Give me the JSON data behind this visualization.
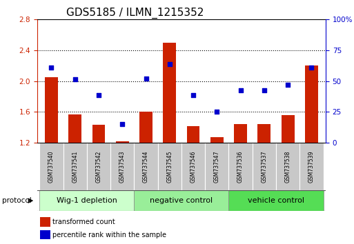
{
  "title": "GDS5185 / ILMN_1215352",
  "samples": [
    "GSM737540",
    "GSM737541",
    "GSM737542",
    "GSM737543",
    "GSM737544",
    "GSM737545",
    "GSM737546",
    "GSM737547",
    "GSM737536",
    "GSM737537",
    "GSM737538",
    "GSM737539"
  ],
  "bar_values": [
    2.05,
    1.57,
    1.43,
    1.22,
    1.6,
    2.5,
    1.42,
    1.27,
    1.44,
    1.44,
    1.56,
    2.2
  ],
  "dot_values": [
    2.18,
    2.02,
    1.82,
    1.44,
    2.03,
    2.22,
    1.82,
    1.6,
    1.88,
    1.88,
    1.95,
    2.18
  ],
  "ylim_left": [
    1.2,
    2.8
  ],
  "ylim_right": [
    0,
    100
  ],
  "yticks_left": [
    1.2,
    1.6,
    2.0,
    2.4,
    2.8
  ],
  "yticks_right": [
    0,
    25,
    50,
    75,
    100
  ],
  "ytick_labels_right": [
    "0",
    "25",
    "50",
    "75",
    "100%"
  ],
  "bar_color": "#CC2200",
  "dot_color": "#0000CC",
  "bar_bottom": 1.2,
  "groups": [
    {
      "label": "Wig-1 depletion",
      "start": 0,
      "end": 4,
      "color": "#CCFFCC"
    },
    {
      "label": "negative control",
      "start": 4,
      "end": 8,
      "color": "#99EE99"
    },
    {
      "label": "vehicle control",
      "start": 8,
      "end": 12,
      "color": "#55DD55"
    }
  ],
  "protocol_label": "protocol",
  "legend_bar_label": "transformed count",
  "legend_dot_label": "percentile rank within the sample",
  "background_color": "#FFFFFF",
  "label_area_color": "#C8C8C8",
  "title_fontsize": 11,
  "tick_fontsize": 7.5,
  "group_fontsize": 8,
  "label_fontsize": 5.5,
  "legend_fontsize": 7
}
